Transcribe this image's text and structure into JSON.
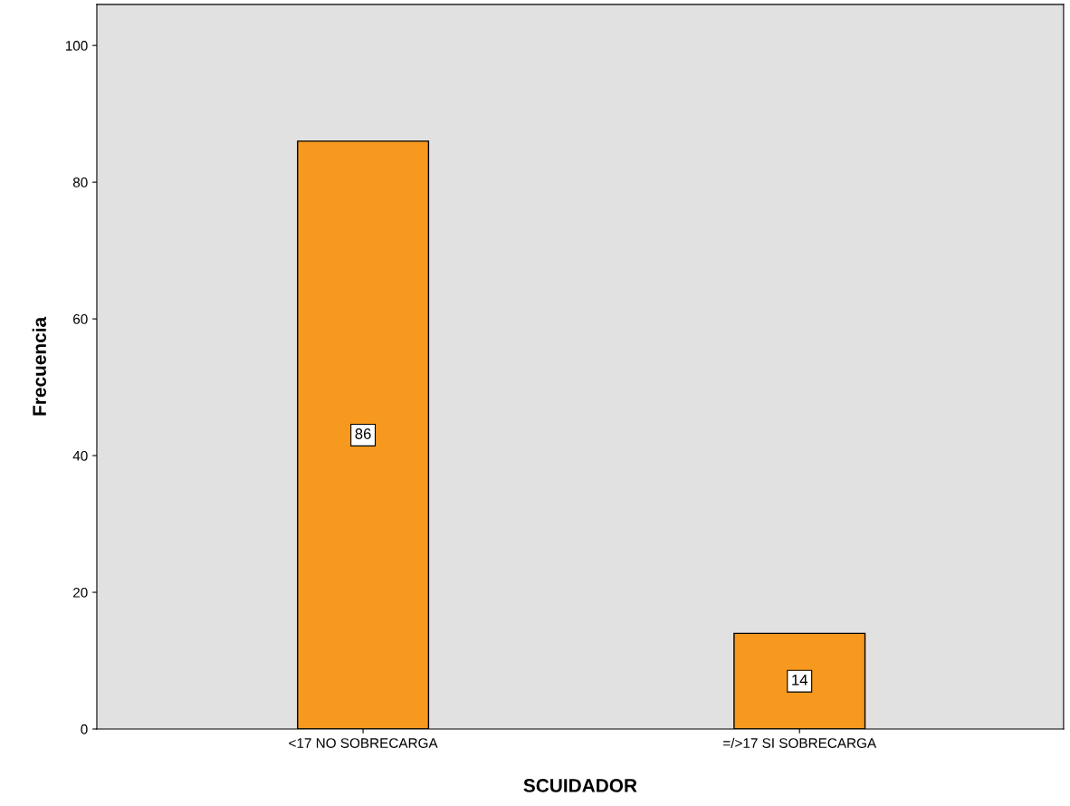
{
  "chart_data": {
    "type": "bar",
    "xlabel": "SCUIDADOR",
    "ylabel": "Frecuencia",
    "categories": [
      "<17 NO SOBRECARGA",
      "=/>17 SI SOBRECARGA"
    ],
    "values": [
      86,
      14
    ],
    "color": "#f7991f",
    "ylim": [
      0,
      106
    ],
    "yticks": [
      0,
      20,
      40,
      60,
      80,
      100
    ],
    "data_labels": true,
    "grid": false
  }
}
